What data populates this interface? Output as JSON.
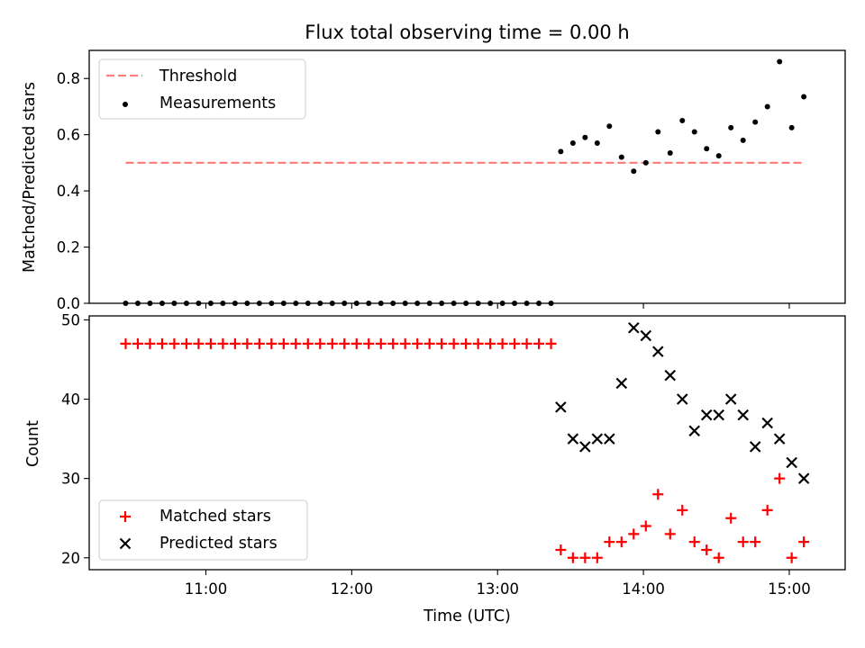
{
  "chart_data": [
    {
      "type": "scatter",
      "title": "Flux total observing time = 0.00 h",
      "ylabel": "Matched/Predicted stars",
      "ylim": [
        0,
        0.9
      ],
      "yticks": [
        "0.0",
        "0.2",
        "0.4",
        "0.6",
        "0.8"
      ],
      "xlim_minutes": [
        612,
        923
      ],
      "legend": {
        "placement": "top-left",
        "entries": [
          "Threshold",
          "Measurements"
        ]
      },
      "threshold": {
        "name": "Threshold",
        "value": 0.5,
        "x_start": "10:27",
        "x_end": "15:05",
        "color": "#ff7f7f",
        "style": "dashed"
      },
      "series": [
        {
          "name": "Measurements",
          "color": "#000000",
          "x": [
            "10:27",
            "10:32",
            "10:37",
            "10:42",
            "10:47",
            "10:52",
            "10:57",
            "11:02",
            "11:07",
            "11:12",
            "11:17",
            "11:22",
            "11:27",
            "11:32",
            "11:37",
            "11:42",
            "11:47",
            "11:52",
            "11:57",
            "12:02",
            "12:07",
            "12:12",
            "12:17",
            "12:22",
            "12:27",
            "12:32",
            "12:37",
            "12:42",
            "12:47",
            "12:52",
            "12:57",
            "13:02",
            "13:07",
            "13:12",
            "13:17",
            "13:22",
            "13:26",
            "13:31",
            "13:36",
            "13:41",
            "13:46",
            "13:51",
            "13:56",
            "14:01",
            "14:06",
            "14:11",
            "14:16",
            "14:21",
            "14:26",
            "14:31",
            "14:36",
            "14:41",
            "14:46",
            "14:51",
            "14:56",
            "15:01",
            "15:06"
          ],
          "y": [
            0,
            0,
            0,
            0,
            0,
            0,
            0,
            0,
            0,
            0,
            0,
            0,
            0,
            0,
            0,
            0,
            0,
            0,
            0,
            0,
            0,
            0,
            0,
            0,
            0,
            0,
            0,
            0,
            0,
            0,
            0,
            0,
            0,
            0,
            0,
            0,
            0.54,
            0.57,
            0.59,
            0.57,
            0.63,
            0.52,
            0.47,
            0.5,
            0.61,
            0.535,
            0.65,
            0.61,
            0.55,
            0.525,
            0.625,
            0.58,
            0.645,
            0.7,
            0.86,
            0.625,
            0.735
          ]
        }
      ]
    },
    {
      "type": "scatter",
      "xlabel": "Time (UTC)",
      "ylabel": "Count",
      "ylim": [
        18.5,
        50.5
      ],
      "yticks": [
        "20",
        "30",
        "40",
        "50"
      ],
      "xticks": [
        "11:00",
        "12:00",
        "13:00",
        "14:00",
        "15:00"
      ],
      "xlim_minutes": [
        612,
        923
      ],
      "legend": {
        "placement": "bottom-left",
        "entries": [
          "Matched stars",
          "Predicted stars"
        ]
      },
      "series": [
        {
          "name": "Matched stars",
          "color": "#ff0000",
          "marker": "plus",
          "x": [
            "10:27",
            "10:32",
            "10:37",
            "10:42",
            "10:47",
            "10:52",
            "10:57",
            "11:02",
            "11:07",
            "11:12",
            "11:17",
            "11:22",
            "11:27",
            "11:32",
            "11:37",
            "11:42",
            "11:47",
            "11:52",
            "11:57",
            "12:02",
            "12:07",
            "12:12",
            "12:17",
            "12:22",
            "12:27",
            "12:32",
            "12:37",
            "12:42",
            "12:47",
            "12:52",
            "12:57",
            "13:02",
            "13:07",
            "13:12",
            "13:17",
            "13:22",
            "13:26",
            "13:31",
            "13:36",
            "13:41",
            "13:46",
            "13:51",
            "13:56",
            "14:01",
            "14:06",
            "14:11",
            "14:16",
            "14:21",
            "14:26",
            "14:31",
            "14:36",
            "14:41",
            "14:46",
            "14:51",
            "14:56",
            "15:01",
            "15:06"
          ],
          "y": [
            47,
            47,
            47,
            47,
            47,
            47,
            47,
            47,
            47,
            47,
            47,
            47,
            47,
            47,
            47,
            47,
            47,
            47,
            47,
            47,
            47,
            47,
            47,
            47,
            47,
            47,
            47,
            47,
            47,
            47,
            47,
            47,
            47,
            47,
            47,
            47,
            21,
            20,
            20,
            20,
            22,
            22,
            23,
            24,
            28,
            23,
            26,
            22,
            21,
            20,
            25,
            22,
            22,
            26,
            30,
            20,
            22
          ]
        },
        {
          "name": "Predicted stars",
          "color": "#000000",
          "marker": "x",
          "x": [
            "13:26",
            "13:31",
            "13:36",
            "13:41",
            "13:46",
            "13:51",
            "13:56",
            "14:01",
            "14:06",
            "14:11",
            "14:16",
            "14:21",
            "14:26",
            "14:31",
            "14:36",
            "14:41",
            "14:46",
            "14:51",
            "14:56",
            "15:01",
            "15:06"
          ],
          "y": [
            39,
            35,
            34,
            35,
            35,
            42,
            49,
            48,
            46,
            43,
            40,
            36,
            38,
            38,
            40,
            38,
            34,
            37,
            35,
            32,
            30
          ]
        }
      ]
    }
  ]
}
